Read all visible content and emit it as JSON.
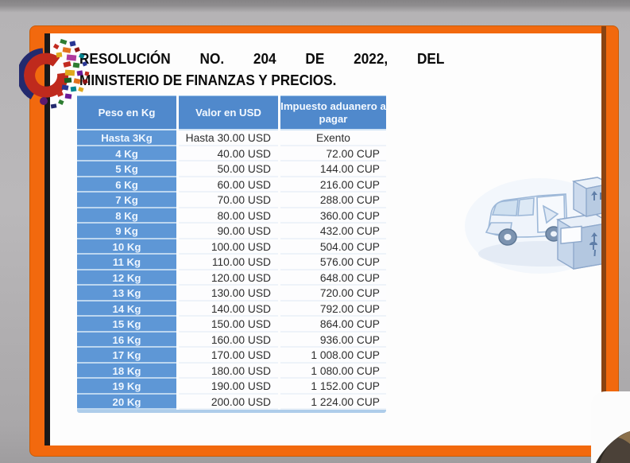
{
  "slide": {
    "title": {
      "line1": "RESOLUCIÓN NO. 204 DE 2022, DEL",
      "line2": "MINISTERIO DE FINANZAS Y PRECIOS."
    },
    "table": {
      "headers": [
        "Peso en Kg",
        "Valor en USD",
        "Impuesto aduanero a pagar"
      ],
      "rows": [
        {
          "peso": "Hasta 3Kg",
          "valor": "Hasta 30.00 USD",
          "impuesto": "Exento"
        },
        {
          "peso": "4 Kg",
          "valor": "40.00 USD",
          "impuesto": "72.00 CUP"
        },
        {
          "peso": "5 Kg",
          "valor": "50.00 USD",
          "impuesto": "144.00 CUP"
        },
        {
          "peso": "6 Kg",
          "valor": "60.00 USD",
          "impuesto": "216.00 CUP"
        },
        {
          "peso": "7 Kg",
          "valor": "70.00 USD",
          "impuesto": "288.00 CUP"
        },
        {
          "peso": "8 Kg",
          "valor": "80.00 USD",
          "impuesto": "360.00 CUP"
        },
        {
          "peso": "9 Kg",
          "valor": "90.00 USD",
          "impuesto": "432.00 CUP"
        },
        {
          "peso": "10 Kg",
          "valor": "100.00 USD",
          "impuesto": "504.00 CUP"
        },
        {
          "peso": "11 Kg",
          "valor": "110.00 USD",
          "impuesto": "576.00 CUP"
        },
        {
          "peso": "12 Kg",
          "valor": "120.00 USD",
          "impuesto": "648.00 CUP"
        },
        {
          "peso": "13 Kg",
          "valor": "130.00 USD",
          "impuesto": "720.00 CUP"
        },
        {
          "peso": "14 Kg",
          "valor": "140.00 USD",
          "impuesto": "792.00 CUP"
        },
        {
          "peso": "15 Kg",
          "valor": "150.00 USD",
          "impuesto": "864.00 CUP"
        },
        {
          "peso": "16 Kg",
          "valor": "160.00 USD",
          "impuesto": "936.00 CUP"
        },
        {
          "peso": "17 Kg",
          "valor": "170.00 USD",
          "impuesto": "1 008.00 CUP"
        },
        {
          "peso": "18 Kg",
          "valor": "180.00 USD",
          "impuesto": "1 080.00 CUP"
        },
        {
          "peso": "19 Kg",
          "valor": "190.00 USD",
          "impuesto": "1 152.00 CUP"
        },
        {
          "peso": "20 Kg",
          "valor": "200.00 USD",
          "impuesto": "1 224.00 CUP"
        }
      ]
    },
    "colors": {
      "frame_orange": "#f2690e",
      "header_blue": "#5089cc",
      "row_blue": "#5e97d6",
      "table_text": "#2e2e2e",
      "background_gray": "#b5b3b5"
    }
  }
}
